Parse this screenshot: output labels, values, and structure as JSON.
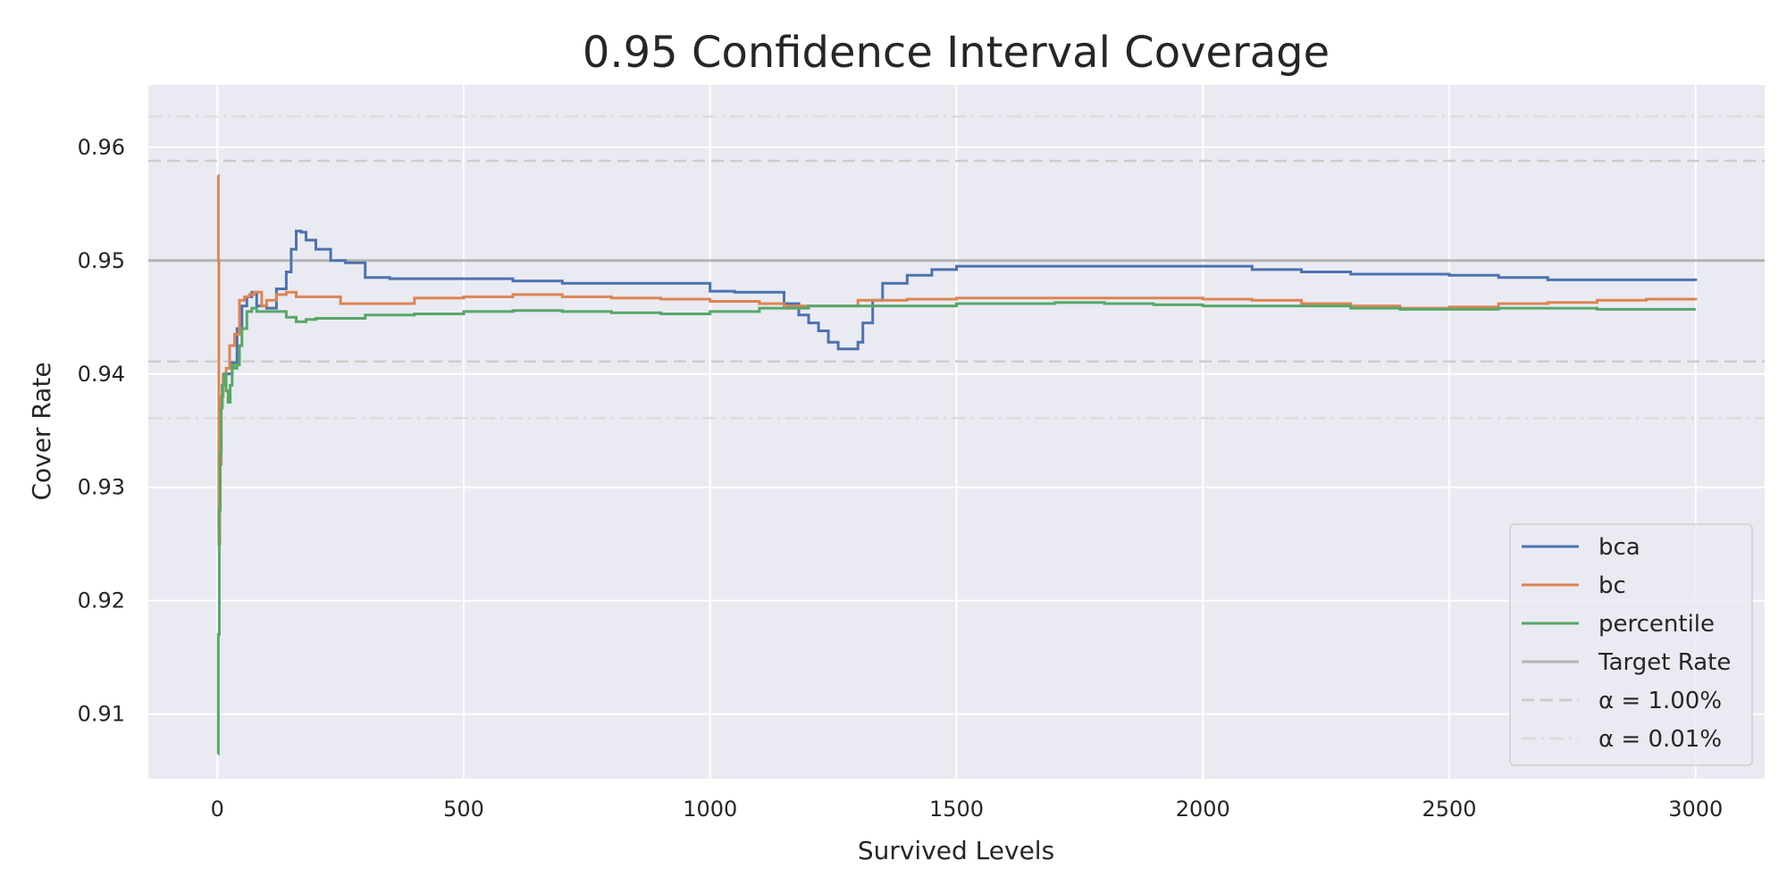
{
  "chart_data": {
    "type": "line",
    "title": "0.95 Confidence Interval Coverage",
    "xlabel": "Survived Levels",
    "ylabel": "Cover Rate",
    "xlim": [
      -140,
      3140
    ],
    "ylim": [
      0.9043,
      0.9655
    ],
    "xticks": [
      0,
      500,
      1000,
      1500,
      2000,
      2500,
      3000
    ],
    "yticks": [
      0.91,
      0.92,
      0.93,
      0.94,
      0.95,
      0.96
    ],
    "xtick_labels": [
      "0",
      "500",
      "1000",
      "1500",
      "2000",
      "2500",
      "3000"
    ],
    "ytick_labels": [
      "0.91",
      "0.92",
      "0.93",
      "0.94",
      "0.95",
      "0.96"
    ],
    "grid": true,
    "legend_position": "lower-right",
    "background": "#eaeaf2",
    "series": [
      {
        "name": "bca",
        "color": "#4c72b0",
        "x": [
          1,
          3,
          6,
          10,
          15,
          20,
          30,
          40,
          50,
          60,
          70,
          80,
          100,
          120,
          140,
          150,
          160,
          170,
          180,
          200,
          230,
          260,
          300,
          350,
          400,
          500,
          600,
          700,
          800,
          900,
          1000,
          1050,
          1100,
          1150,
          1180,
          1200,
          1220,
          1240,
          1260,
          1280,
          1300,
          1310,
          1330,
          1350,
          1400,
          1450,
          1500,
          1600,
          1800,
          2000,
          2100,
          2200,
          2300,
          2500,
          2600,
          2700,
          2800,
          3000
        ],
        "y": [
          0.926,
          0.934,
          0.937,
          0.939,
          0.94,
          0.94,
          0.941,
          0.944,
          0.946,
          0.9468,
          0.9472,
          0.946,
          0.9458,
          0.9475,
          0.949,
          0.951,
          0.9526,
          0.9525,
          0.9518,
          0.951,
          0.95,
          0.9498,
          0.9485,
          0.9484,
          0.9484,
          0.9484,
          0.9482,
          0.948,
          0.948,
          0.948,
          0.9473,
          0.9472,
          0.9472,
          0.9462,
          0.9452,
          0.9445,
          0.9438,
          0.9428,
          0.9422,
          0.9422,
          0.9428,
          0.9445,
          0.9465,
          0.948,
          0.9487,
          0.9492,
          0.9495,
          0.9495,
          0.9495,
          0.9495,
          0.9492,
          0.949,
          0.9488,
          0.9487,
          0.9485,
          0.9483,
          0.9483,
          0.9482
        ]
      },
      {
        "name": "bc",
        "color": "#dd8452",
        "x": [
          1,
          2,
          3,
          5,
          8,
          12,
          18,
          25,
          35,
          45,
          55,
          65,
          75,
          90,
          100,
          120,
          140,
          160,
          200,
          250,
          300,
          400,
          500,
          600,
          700,
          800,
          900,
          1000,
          1100,
          1150,
          1200,
          1300,
          1400,
          1500,
          1600,
          1700,
          1800,
          1900,
          2000,
          2100,
          2200,
          2300,
          2400,
          2500,
          2600,
          2700,
          2800,
          2900,
          3000
        ],
        "y": [
          0.9575,
          0.95,
          0.925,
          0.932,
          0.938,
          0.94,
          0.9405,
          0.9425,
          0.9435,
          0.9465,
          0.9468,
          0.947,
          0.9472,
          0.946,
          0.9465,
          0.947,
          0.9472,
          0.9468,
          0.9468,
          0.9462,
          0.9462,
          0.9467,
          0.9468,
          0.947,
          0.9468,
          0.9467,
          0.9466,
          0.9464,
          0.9462,
          0.946,
          0.946,
          0.9465,
          0.9466,
          0.9467,
          0.9467,
          0.9467,
          0.9467,
          0.9467,
          0.9466,
          0.9465,
          0.9462,
          0.946,
          0.9458,
          0.9459,
          0.9462,
          0.9463,
          0.9465,
          0.9466,
          0.9465
        ]
      },
      {
        "name": "percentile",
        "color": "#55a868",
        "x": [
          1,
          2,
          4,
          6,
          8,
          10,
          14,
          18,
          22,
          26,
          30,
          34,
          40,
          45,
          50,
          60,
          70,
          80,
          100,
          120,
          140,
          160,
          180,
          200,
          300,
          400,
          500,
          600,
          700,
          800,
          900,
          1000,
          1100,
          1200,
          1300,
          1400,
          1500,
          1600,
          1700,
          1800,
          1900,
          2000,
          2100,
          2200,
          2300,
          2400,
          2500,
          2600,
          2700,
          2800,
          2900,
          3000
        ],
        "y": [
          0.9065,
          0.917,
          0.928,
          0.933,
          0.937,
          0.939,
          0.94,
          0.9385,
          0.9375,
          0.939,
          0.9408,
          0.9405,
          0.9408,
          0.9425,
          0.944,
          0.9455,
          0.9458,
          0.9455,
          0.9455,
          0.9455,
          0.945,
          0.9446,
          0.9448,
          0.9449,
          0.9452,
          0.9453,
          0.9455,
          0.9456,
          0.9455,
          0.9454,
          0.9453,
          0.9455,
          0.9458,
          0.946,
          0.946,
          0.946,
          0.9462,
          0.9462,
          0.9463,
          0.9462,
          0.9461,
          0.946,
          0.946,
          0.946,
          0.9458,
          0.9457,
          0.9457,
          0.9458,
          0.9458,
          0.9457,
          0.9457,
          0.9457
        ]
      }
    ],
    "reference_lines": [
      {
        "name": "Target Rate",
        "y": 0.95,
        "color": "#b4b4b4",
        "dash": "solid"
      },
      {
        "name": "α = 1.00%",
        "y": [
          0.9588,
          0.9411
        ],
        "color": "#cdcdcd",
        "dash": "dashed"
      },
      {
        "name": "α = 0.01%",
        "y": [
          0.9627,
          0.9361
        ],
        "color": "#dcdcdc",
        "dash": "dashdot"
      }
    ],
    "legend": [
      "bca",
      "bc",
      "percentile",
      "Target Rate",
      "α = 1.00%",
      "α = 0.01%"
    ]
  }
}
